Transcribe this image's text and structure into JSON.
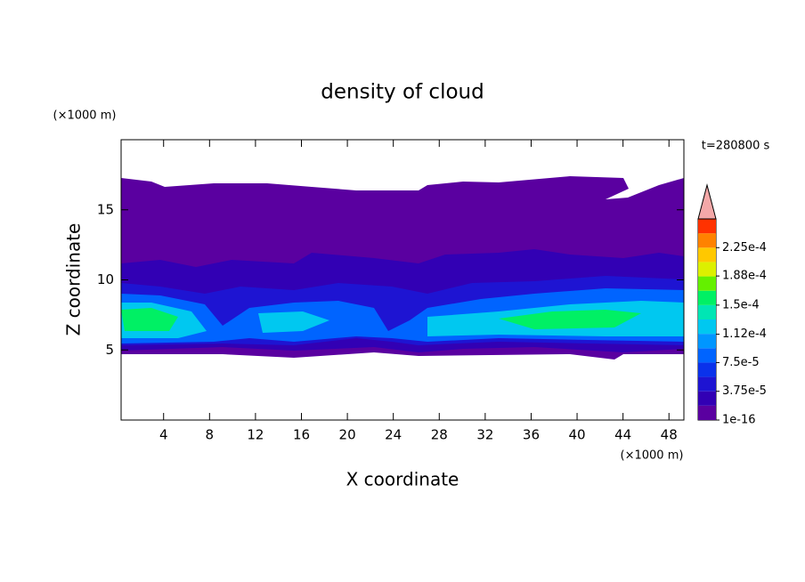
{
  "chart_data": {
    "type": "contour",
    "title": "density of cloud",
    "xlabel": "X coordinate",
    "ylabel": "Z coordinate",
    "xunit": "(×1000 m)",
    "yunit": "(×1000 m)",
    "time_label": "t=280800 s",
    "xlim": [
      0.3,
      49.3
    ],
    "xticks": [
      4,
      8,
      12,
      16,
      20,
      24,
      28,
      32,
      36,
      40,
      44,
      48
    ],
    "ylim": [
      0,
      20
    ],
    "yticks": [
      5,
      10,
      15
    ],
    "colorbar": {
      "lim": [
        0,
        0.0002625
      ],
      "colors": [
        "#5a00a0",
        "#3200b4",
        "#1e14d2",
        "#0a32eb",
        "#0064ff",
        "#0096ff",
        "#00c8f0",
        "#00e6b4",
        "#00f064",
        "#64f000",
        "#dcf000",
        "#ffc800",
        "#ff8200",
        "#ff3200"
      ],
      "extend_color": "#f4a8a8",
      "ticks": [
        {
          "value": 1e-16,
          "label": "1e-16"
        },
        {
          "value": 3.75e-05,
          "label": "3.75e-5"
        },
        {
          "value": 7.5e-05,
          "label": "7.5e-5"
        },
        {
          "value": 0.000112,
          "label": "1.12e-4"
        },
        {
          "value": 0.00015,
          "label": "1.5e-4"
        },
        {
          "value": 0.000188,
          "label": "1.88e-4"
        },
        {
          "value": 0.000225,
          "label": "2.25e-4"
        }
      ]
    }
  }
}
